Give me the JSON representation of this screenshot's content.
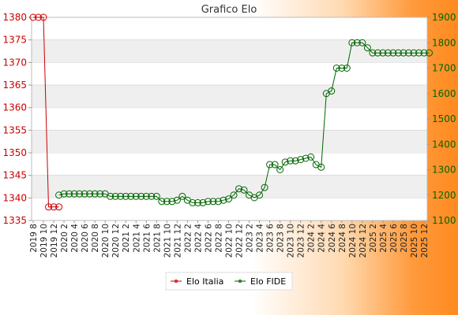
{
  "chart_data": {
    "type": "line",
    "title": "Grafico Elo",
    "x_categories": [
      "2019 8",
      "2019 9",
      "2019 10",
      "2019 11",
      "2019 12",
      "2020 1",
      "2020 2",
      "2020 3",
      "2020 4",
      "2020 5",
      "2020 6",
      "2020 7",
      "2020 8",
      "2020 9",
      "2020 10",
      "2020 11",
      "2020 12",
      "2021 1",
      "2021 2",
      "2021 3",
      "2021 4",
      "2021 5",
      "2021 6",
      "2021 7",
      "2021 8",
      "2021 9",
      "2021 10",
      "2021 11",
      "2021 12",
      "2022 1",
      "2022 2",
      "2022 3",
      "2022 4",
      "2022 5",
      "2022 6",
      "2022 7",
      "2022 8",
      "2022 9",
      "2022 10",
      "2022 11",
      "2022 12",
      "2023 1",
      "2023 2",
      "2023 3",
      "2023 4",
      "2023 5",
      "2023 6",
      "2023 7",
      "2023 8",
      "2023 9",
      "2023 10",
      "2023 11",
      "2023 12",
      "2024 1",
      "2024 2",
      "2024 3",
      "2024 4",
      "2024 5",
      "2024 6",
      "2024 7",
      "2024 8",
      "2024 9",
      "2024 10",
      "2024 11",
      "2024 12",
      "2025 1",
      "2025 2",
      "2025 3",
      "2025 4",
      "2025 5",
      "2025 6",
      "2025 7",
      "2025 8",
      "2025 9",
      "2025 10",
      "2025 11",
      "2025 12"
    ],
    "x_tick_labels": [
      "2019 8",
      "2019 10",
      "2019 12",
      "2020 2",
      "2020 4",
      "2020 6",
      "2020 8",
      "2020 10",
      "2020 12",
      "2021 2",
      "2021 4",
      "2021 6",
      "2021 8",
      "2021 10",
      "2021 12",
      "2022 2",
      "2022 4",
      "2022 6",
      "2022 8",
      "2022 10",
      "2022 12",
      "2023 2",
      "2023 4",
      "2023 6",
      "2023 8",
      "2023 10",
      "2023 12",
      "2024 2",
      "2024 4",
      "2024 6",
      "2024 8",
      "2024 10",
      "2024 12",
      "2025 2",
      "2025 4",
      "2025 6",
      "2025 8",
      "2025 10",
      "2025 12"
    ],
    "y_left": {
      "ylim": [
        1335,
        1380
      ],
      "ticks": [
        1335,
        1340,
        1345,
        1350,
        1355,
        1360,
        1365,
        1370,
        1375,
        1380
      ],
      "color": "#cc0000"
    },
    "y_right": {
      "ylim": [
        1100,
        1900
      ],
      "ticks": [
        1100,
        1200,
        1300,
        1400,
        1500,
        1600,
        1700,
        1800,
        1900
      ],
      "color": "#006600"
    },
    "series": [
      {
        "name": "Elo Italia",
        "axis": "left",
        "color": "#cc0000",
        "values": [
          1380,
          1380,
          1380,
          1338,
          1338,
          1338
        ]
      },
      {
        "name": "Elo FIDE",
        "axis": "right",
        "color": "#006600",
        "start_index": 5,
        "values": [
          1200,
          1205,
          1205,
          1205,
          1205,
          1205,
          1205,
          1205,
          1205,
          1205,
          1195,
          1195,
          1195,
          1195,
          1195,
          1195,
          1195,
          1195,
          1195,
          1195,
          1175,
          1175,
          1175,
          1180,
          1195,
          1180,
          1170,
          1170,
          1170,
          1175,
          1175,
          1175,
          1180,
          1185,
          1200,
          1225,
          1220,
          1200,
          1190,
          1200,
          1230,
          1320,
          1320,
          1300,
          1330,
          1335,
          1335,
          1340,
          1345,
          1350,
          1320,
          1310,
          1600,
          1610,
          1700,
          1700,
          1700,
          1800,
          1800,
          1800,
          1780,
          1760,
          1760,
          1760,
          1760,
          1760,
          1760,
          1760,
          1760,
          1760,
          1760,
          1760,
          1760
        ]
      }
    ],
    "legend": {
      "placement": "bottom-center",
      "entries": [
        "Elo Italia",
        "Elo FIDE"
      ]
    },
    "grid": "horizontal-bands"
  }
}
